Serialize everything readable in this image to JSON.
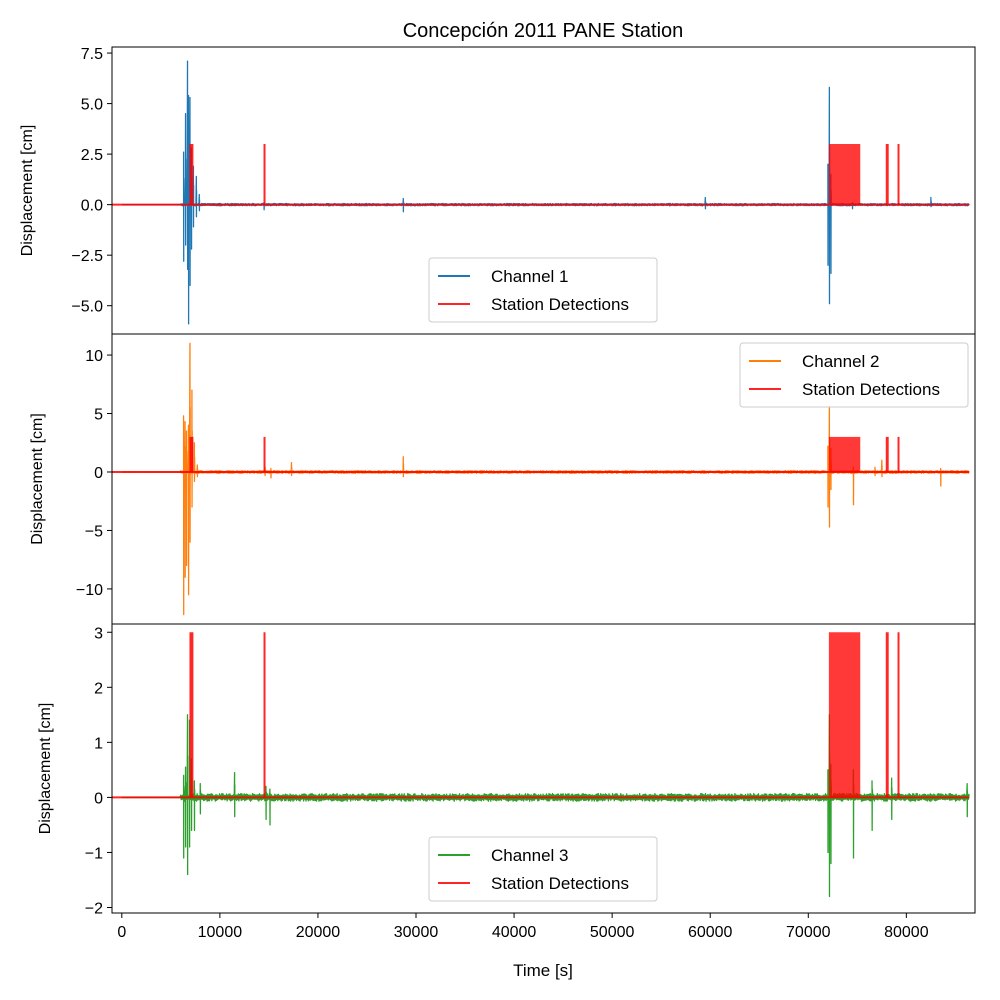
{
  "chart_data": {
    "type": "line",
    "title": "Concepción 2011 PANE Station",
    "xlabel": "Time [s]",
    "xlim": [
      -1000,
      87000
    ],
    "xticks": [
      0,
      10000,
      20000,
      30000,
      40000,
      50000,
      60000,
      70000,
      80000
    ],
    "xtick_labels": [
      "0",
      "10000",
      "20000",
      "30000",
      "40000",
      "50000",
      "60000",
      "70000",
      "80000"
    ],
    "detection_color": "#ff0000",
    "detection_level": 3,
    "detection_segments": [
      [
        6900,
        7300
      ],
      [
        14450,
        14550
      ],
      [
        72100,
        75300
      ],
      [
        77900,
        78200
      ],
      [
        79100,
        79200
      ]
    ],
    "panels": [
      {
        "ylabel": "Displacement [cm]",
        "ylim": [
          -6.4,
          7.8
        ],
        "yticks": [
          -5.0,
          -2.5,
          0.0,
          2.5,
          5.0,
          7.5
        ],
        "ytick_labels": [
          "−5.0",
          "−2.5",
          "0.0",
          "2.5",
          "5.0",
          "7.5"
        ],
        "legend_position": "lower-center",
        "series": [
          {
            "name": "Channel 1",
            "color": "#1f77b4",
            "noise": 0.06,
            "spikes": [
              [
                6300,
                2.6,
                -2.8
              ],
              [
                6500,
                4.5,
                -2.0
              ],
              [
                6700,
                7.1,
                -3.2
              ],
              [
                6800,
                5.4,
                -5.9
              ],
              [
                6950,
                5.3,
                -4.0
              ],
              [
                7100,
                2.8,
                -2.2
              ],
              [
                7300,
                1.9,
                -1.1
              ],
              [
                7600,
                1.4,
                -0.6
              ],
              [
                7900,
                0.5,
                -0.3
              ],
              [
                14500,
                0.1,
                -0.25
              ],
              [
                28700,
                0.3,
                -0.35
              ],
              [
                59500,
                0.35,
                -0.2
              ],
              [
                72000,
                2.0,
                -3.0
              ],
              [
                72150,
                5.8,
                -4.9
              ],
              [
                72300,
                1.5,
                -3.4
              ],
              [
                74500,
                0.1,
                -0.2
              ],
              [
                82500,
                0.35,
                -0.1
              ]
            ]
          },
          {
            "name": "Station Detections",
            "color": "#ff0000"
          }
        ]
      },
      {
        "ylabel": "Displacement [cm]",
        "ylim": [
          -13.0,
          11.8
        ],
        "yticks": [
          -10,
          -5,
          0,
          5,
          10
        ],
        "ytick_labels": [
          "−10",
          "−5",
          "0",
          "5",
          "10"
        ],
        "legend_position": "upper-right",
        "series": [
          {
            "name": "Channel 2",
            "color": "#ff7f0e",
            "noise": 0.12,
            "spikes": [
              [
                6300,
                4.8,
                -12.2
              ],
              [
                6450,
                4.3,
                -9.0
              ],
              [
                6600,
                3.5,
                -8.0
              ],
              [
                6800,
                4.0,
                -10.5
              ],
              [
                6950,
                11.0,
                -6.0
              ],
              [
                7150,
                7.0,
                -3.0
              ],
              [
                7400,
                2.5,
                -0.8
              ],
              [
                7700,
                0.6,
                -0.4
              ],
              [
                14600,
                0.4,
                -0.3
              ],
              [
                15200,
                0.3,
                -0.5
              ],
              [
                17300,
                0.8,
                -0.3
              ],
              [
                28700,
                1.3,
                -0.4
              ],
              [
                72000,
                2.2,
                -3.0
              ],
              [
                72150,
                5.6,
                -4.7
              ],
              [
                72300,
                2.0,
                -1.5
              ],
              [
                74600,
                0.4,
                -2.8
              ],
              [
                76800,
                0.4,
                -0.3
              ],
              [
                77500,
                1.0,
                -0.4
              ],
              [
                83500,
                0.3,
                -1.2
              ]
            ]
          },
          {
            "name": "Station Detections",
            "color": "#ff0000"
          }
        ]
      },
      {
        "ylabel": "Displacement [cm]",
        "ylim": [
          -2.1,
          3.15
        ],
        "yticks": [
          -2,
          -1,
          0,
          1,
          2,
          3
        ],
        "ytick_labels": [
          "−2",
          "−1",
          "0",
          "1",
          "2",
          "3"
        ],
        "legend_position": "lower-center",
        "series": [
          {
            "name": "Channel 3",
            "color": "#2ca02c",
            "noise": 0.07,
            "spikes": [
              [
                6300,
                0.4,
                -1.1
              ],
              [
                6500,
                0.55,
                -0.9
              ],
              [
                6700,
                1.5,
                -1.4
              ],
              [
                6900,
                1.4,
                -0.9
              ],
              [
                7100,
                0.7,
                -0.6
              ],
              [
                7400,
                0.3,
                -0.6
              ],
              [
                8000,
                0.25,
                -0.3
              ],
              [
                11500,
                0.45,
                -0.35
              ],
              [
                14700,
                0.2,
                -0.4
              ],
              [
                15100,
                0.15,
                -0.5
              ],
              [
                72000,
                0.5,
                -1.0
              ],
              [
                72150,
                1.5,
                -1.8
              ],
              [
                72300,
                0.6,
                -1.2
              ],
              [
                74600,
                0.5,
                -1.1
              ],
              [
                76500,
                0.3,
                -0.6
              ],
              [
                78500,
                0.35,
                -0.4
              ],
              [
                86200,
                0.25,
                -0.35
              ]
            ]
          },
          {
            "name": "Station Detections",
            "color": "#ff0000"
          }
        ]
      }
    ]
  }
}
